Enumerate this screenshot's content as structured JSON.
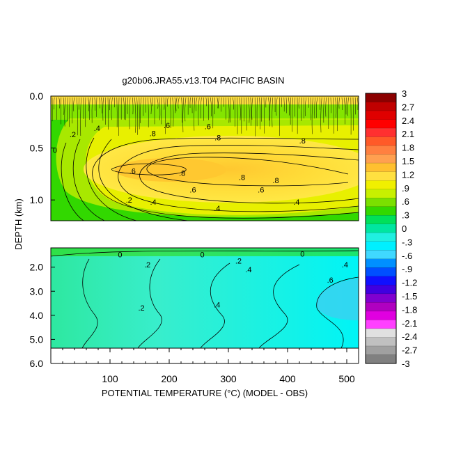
{
  "chart_data": {
    "type": "heatmap",
    "title": "g20b06.JRA55.v13.T04 PACIFIC BASIN",
    "xlabel": "POTENTIAL TEMPERATURE (°C) (MODEL - OBS)",
    "ylabel": "DEPTH (km)",
    "xlim": [
      0,
      520
    ],
    "x_ticks": [
      {
        "value": 100,
        "label": "100"
      },
      {
        "value": 200,
        "label": "200"
      },
      {
        "value": 300,
        "label": "300"
      },
      {
        "value": 400,
        "label": "400"
      },
      {
        "value": 500,
        "label": "500"
      }
    ],
    "upper_panel": {
      "ylim": [
        0.0,
        1.2
      ],
      "y_ticks": [
        {
          "value": 0.0,
          "label": "0.0"
        },
        {
          "value": 0.5,
          "label": "0.5"
        },
        {
          "value": 1.0,
          "label": "1.0"
        }
      ]
    },
    "lower_panel": {
      "ylim": [
        1.2,
        6.0
      ],
      "y_ticks": [
        {
          "value": 2.0,
          "label": "2.0"
        },
        {
          "value": 3.0,
          "label": "3.0"
        },
        {
          "value": 4.0,
          "label": "4.0"
        },
        {
          "value": 5.0,
          "label": "5.0"
        },
        {
          "value": 6.0,
          "label": "6.0"
        }
      ]
    },
    "contour_labels": [
      {
        "panel": "upper",
        "x": 7,
        "depth": 0.52,
        "text": "0"
      },
      {
        "panel": "upper",
        "x": 37,
        "depth": 0.37,
        "text": ".2"
      },
      {
        "panel": "upper",
        "x": 78,
        "depth": 0.31,
        "text": ".4"
      },
      {
        "panel": "upper",
        "x": 196,
        "depth": 0.28,
        "text": ".6"
      },
      {
        "panel": "upper",
        "x": 265,
        "depth": 0.29,
        "text": ".6"
      },
      {
        "panel": "upper",
        "x": 172,
        "depth": 0.36,
        "text": ".8"
      },
      {
        "panel": "upper",
        "x": 282,
        "depth": 0.4,
        "text": ".8"
      },
      {
        "panel": "upper",
        "x": 425,
        "depth": 0.43,
        "text": ".8"
      },
      {
        "panel": "upper",
        "x": 138,
        "depth": 0.72,
        "text": ".6"
      },
      {
        "panel": "upper",
        "x": 222,
        "depth": 0.74,
        "text": ".8"
      },
      {
        "panel": "upper",
        "x": 380,
        "depth": 0.81,
        "text": ".8"
      },
      {
        "panel": "upper",
        "x": 323,
        "depth": 0.78,
        "text": ".8"
      },
      {
        "panel": "upper",
        "x": 240,
        "depth": 0.9,
        "text": ".6"
      },
      {
        "panel": "upper",
        "x": 355,
        "depth": 0.9,
        "text": ".6"
      },
      {
        "panel": "upper",
        "x": 132,
        "depth": 1.0,
        "text": ".2"
      },
      {
        "panel": "upper",
        "x": 173,
        "depth": 1.02,
        "text": ".4"
      },
      {
        "panel": "upper",
        "x": 281,
        "depth": 1.08,
        "text": ".4"
      },
      {
        "panel": "upper",
        "x": 415,
        "depth": 1.02,
        "text": ".4"
      },
      {
        "panel": "lower",
        "x": 117,
        "depth": 1.48,
        "text": "0"
      },
      {
        "panel": "lower",
        "x": 163,
        "depth": 1.89,
        "text": ".2"
      },
      {
        "panel": "lower",
        "x": 256,
        "depth": 1.48,
        "text": "0"
      },
      {
        "panel": "lower",
        "x": 317,
        "depth": 1.74,
        "text": ".2"
      },
      {
        "panel": "lower",
        "x": 334,
        "depth": 2.09,
        "text": ".4"
      },
      {
        "panel": "lower",
        "x": 425,
        "depth": 1.45,
        "text": "0"
      },
      {
        "panel": "lower",
        "x": 497,
        "depth": 1.89,
        "text": ".4"
      },
      {
        "panel": "lower",
        "x": 472,
        "depth": 2.53,
        "text": ".6"
      },
      {
        "panel": "lower",
        "x": 153,
        "depth": 3.69,
        "text": ".2"
      },
      {
        "panel": "lower",
        "x": 281,
        "depth": 3.55,
        "text": ".4"
      }
    ],
    "colorbar": {
      "labels": [
        "3",
        "2.7",
        "2.4",
        "2.1",
        "1.8",
        "1.5",
        "1.2",
        ".9",
        ".6",
        ".3",
        "0",
        "-.3",
        "-.6",
        "-.9",
        "-1.2",
        "-1.5",
        "-1.8",
        "-2.1",
        "-2.4",
        "-2.7",
        "-3"
      ],
      "colors": [
        "#8b0000",
        "#c00000",
        "#e00000",
        "#ff0000",
        "#ff3030",
        "#ff5a28",
        "#ff8040",
        "#ffa050",
        "#ffc030",
        "#ffe040",
        "#f0f000",
        "#c8f000",
        "#7ae000",
        "#32d800",
        "#00e05a",
        "#00e6a0",
        "#20f0e0",
        "#00f0ff",
        "#40d8ff",
        "#0090ff",
        "#0050ff",
        "#1010ff",
        "#4000e0",
        "#8000d0",
        "#b000c0",
        "#e000e0",
        "#ff40ff",
        "#e0e0e0",
        "#c0c0c0",
        "#a0a0a0",
        "#808080"
      ]
    }
  }
}
